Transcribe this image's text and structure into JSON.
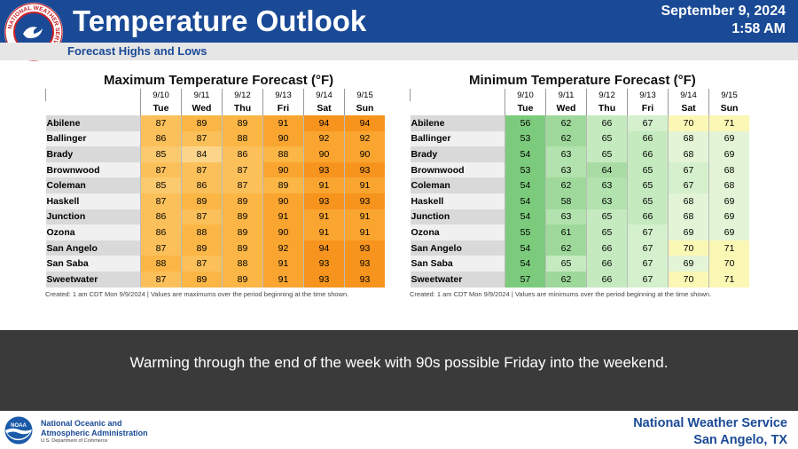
{
  "header": {
    "title": "Temperature Outlook",
    "subtitle": "Forecast Highs and Lows",
    "date": "September 9, 2024",
    "time": "1:58 AM",
    "logo_text": "NATIONAL WEATHER SERVICE",
    "bar_color": "#1a4a96"
  },
  "columns": {
    "dates": [
      "9/10",
      "9/11",
      "9/12",
      "9/13",
      "9/14",
      "9/15"
    ],
    "days": [
      "Tue",
      "Wed",
      "Thu",
      "Fri",
      "Sat",
      "Sun"
    ]
  },
  "max_table": {
    "title": "Maximum Temperature Forecast (°F)",
    "note": "Created: 1 am CDT Mon 9/9/2024  |  Values are maximums over the period beginning at the time shown.",
    "rows": [
      {
        "city": "Abilene",
        "values": [
          87,
          89,
          89,
          91,
          94,
          94
        ]
      },
      {
        "city": "Ballinger",
        "values": [
          86,
          87,
          88,
          90,
          92,
          92
        ]
      },
      {
        "city": "Brady",
        "values": [
          85,
          84,
          86,
          88,
          90,
          90
        ]
      },
      {
        "city": "Brownwood",
        "values": [
          87,
          87,
          87,
          90,
          93,
          93
        ]
      },
      {
        "city": "Coleman",
        "values": [
          85,
          86,
          87,
          89,
          91,
          91
        ]
      },
      {
        "city": "Haskell",
        "values": [
          87,
          89,
          89,
          90,
          93,
          93
        ]
      },
      {
        "city": "Junction",
        "values": [
          86,
          87,
          89,
          91,
          91,
          91
        ]
      },
      {
        "city": "Ozona",
        "values": [
          86,
          88,
          89,
          90,
          91,
          91
        ]
      },
      {
        "city": "San Angelo",
        "values": [
          87,
          89,
          89,
          92,
          94,
          93
        ]
      },
      {
        "city": "San Saba",
        "values": [
          88,
          87,
          88,
          91,
          93,
          93
        ]
      },
      {
        "city": "Sweetwater",
        "values": [
          87,
          89,
          89,
          91,
          93,
          93
        ]
      }
    ]
  },
  "min_table": {
    "title": "Minimum Temperature Forecast (°F)",
    "note": "Created: 1 am CDT Mon 9/9/2024  |  Values are minimums over the period beginning at the time shown.",
    "rows": [
      {
        "city": "Abilene",
        "values": [
          56,
          62,
          66,
          67,
          70,
          71
        ]
      },
      {
        "city": "Ballinger",
        "values": [
          53,
          62,
          65,
          66,
          68,
          69
        ]
      },
      {
        "city": "Brady",
        "values": [
          54,
          63,
          65,
          66,
          68,
          69
        ]
      },
      {
        "city": "Brownwood",
        "values": [
          53,
          63,
          64,
          65,
          67,
          68
        ]
      },
      {
        "city": "Coleman",
        "values": [
          54,
          62,
          63,
          65,
          67,
          68
        ]
      },
      {
        "city": "Haskell",
        "values": [
          54,
          58,
          63,
          65,
          68,
          69
        ]
      },
      {
        "city": "Junction",
        "values": [
          54,
          63,
          65,
          66,
          68,
          69
        ]
      },
      {
        "city": "Ozona",
        "values": [
          55,
          61,
          65,
          67,
          69,
          69
        ]
      },
      {
        "city": "San Angelo",
        "values": [
          54,
          62,
          66,
          67,
          70,
          71
        ]
      },
      {
        "city": "San Saba",
        "values": [
          54,
          65,
          66,
          67,
          69,
          70
        ]
      },
      {
        "city": "Sweetwater",
        "values": [
          57,
          62,
          66,
          67,
          70,
          71
        ]
      }
    ]
  },
  "banner": {
    "text": "Warming through the end of the week with 90s possible Friday into the weekend."
  },
  "footer": {
    "noaa_line1": "National Oceanic and",
    "noaa_line2": "Atmospheric Administration",
    "noaa_dept": "U.S. Department of Commerce",
    "noaa_logo_text": "NOAA",
    "nws_line1": "National Weather Service",
    "nws_line2": "San Angelo, TX"
  }
}
